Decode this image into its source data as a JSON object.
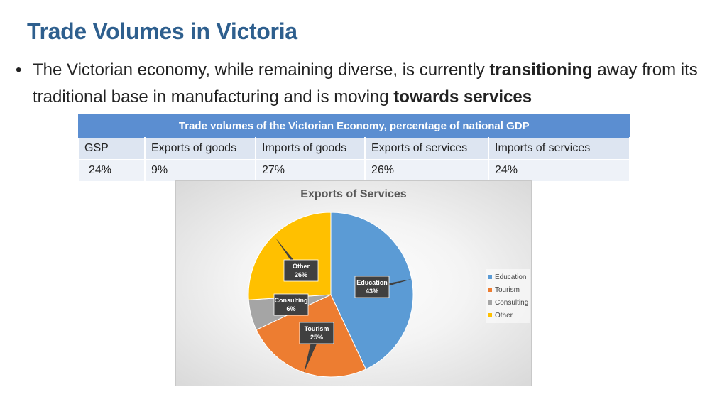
{
  "slide": {
    "title": "Trade Volumes in Victoria",
    "bullet_symbol": "•",
    "bullet": {
      "part1": "The Victorian economy, while remaining diverse, is currently ",
      "bold1": "transitioning",
      "part2": " away from its traditional base in manufacturing and is moving ",
      "bold2": "towards services"
    }
  },
  "table": {
    "caption": "Trade volumes of the Victorian Economy, percentage of national GDP",
    "headers": [
      "GSP",
      "Exports of goods",
      "Imports of goods",
      "Exports of services",
      "Imports of services"
    ],
    "values": [
      "24%",
      "9%",
      "27%",
      "26%",
      "24%"
    ]
  },
  "chart_data": {
    "type": "pie",
    "title": "Exports of Services",
    "slices": [
      {
        "label": "Education",
        "value": 43,
        "display": "43%",
        "color": "#5b9bd5"
      },
      {
        "label": "Tourism",
        "value": 25,
        "display": "25%",
        "color": "#ed7d31"
      },
      {
        "label": "Consulting",
        "value": 6,
        "display": "6%",
        "color": "#a5a5a5"
      },
      {
        "label": "Other",
        "value": 26,
        "display": "26%",
        "color": "#ffc000"
      }
    ],
    "legend_position": "right"
  }
}
